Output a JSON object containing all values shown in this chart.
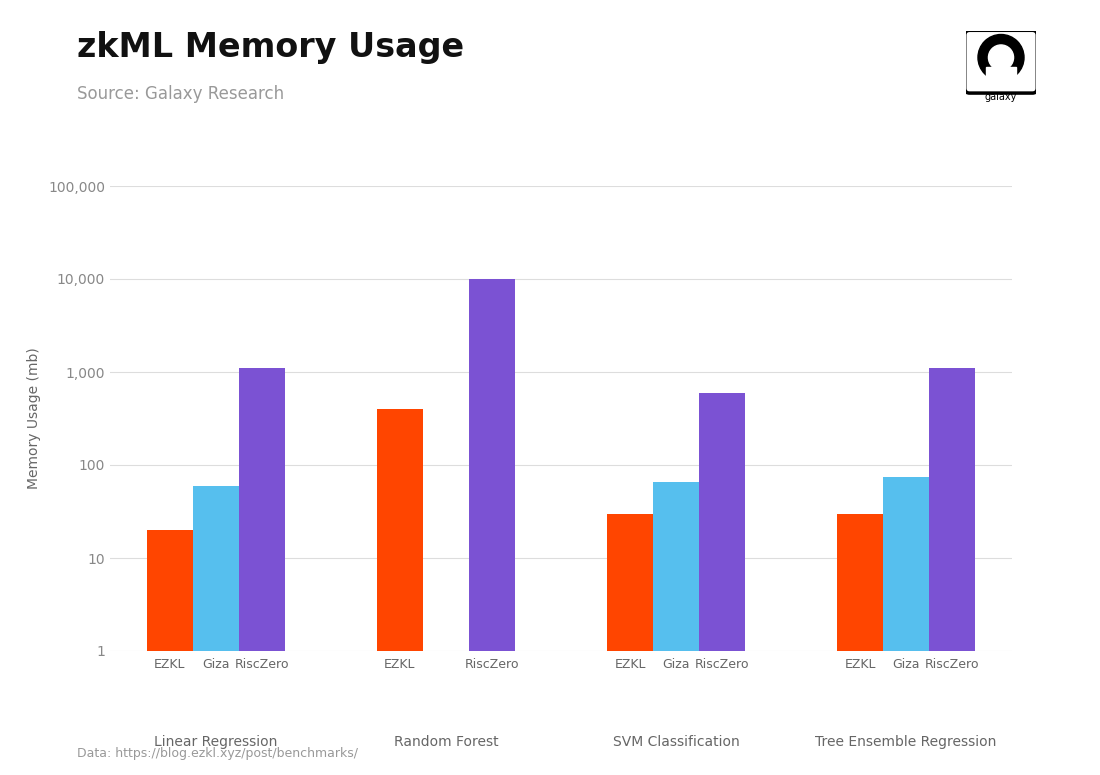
{
  "title": "zkML Memory Usage",
  "subtitle": "Source: Galaxy Research",
  "ylabel": "Memory Usage (mb)",
  "footnote": "Data: https://blog.ezkl.xyz/post/benchmarks/",
  "categories": [
    "Linear Regression",
    "Random Forest",
    "SVM Classification",
    "Tree Ensemble Regression"
  ],
  "systems": [
    "EZKL",
    "Giza",
    "RiscZero"
  ],
  "colors": {
    "EZKL": "#FF4500",
    "Giza": "#56BFEE",
    "RiscZero": "#7B52D3"
  },
  "values": {
    "Linear Regression": {
      "EZKL": 20,
      "Giza": 60,
      "RiscZero": 1100
    },
    "Random Forest": {
      "EZKL": 400,
      "Giza": null,
      "RiscZero": 10000
    },
    "SVM Classification": {
      "EZKL": 30,
      "Giza": 65,
      "RiscZero": 600
    },
    "Tree Ensemble Regression": {
      "EZKL": 30,
      "Giza": 75,
      "RiscZero": 1100
    }
  },
  "ylim": [
    1,
    100000
  ],
  "background_color": "#FFFFFF",
  "grid_color": "#DDDDDD",
  "title_fontsize": 24,
  "subtitle_fontsize": 12,
  "axis_label_fontsize": 10,
  "tick_fontsize": 10,
  "bar_label_fontsize": 9,
  "category_fontsize": 10
}
